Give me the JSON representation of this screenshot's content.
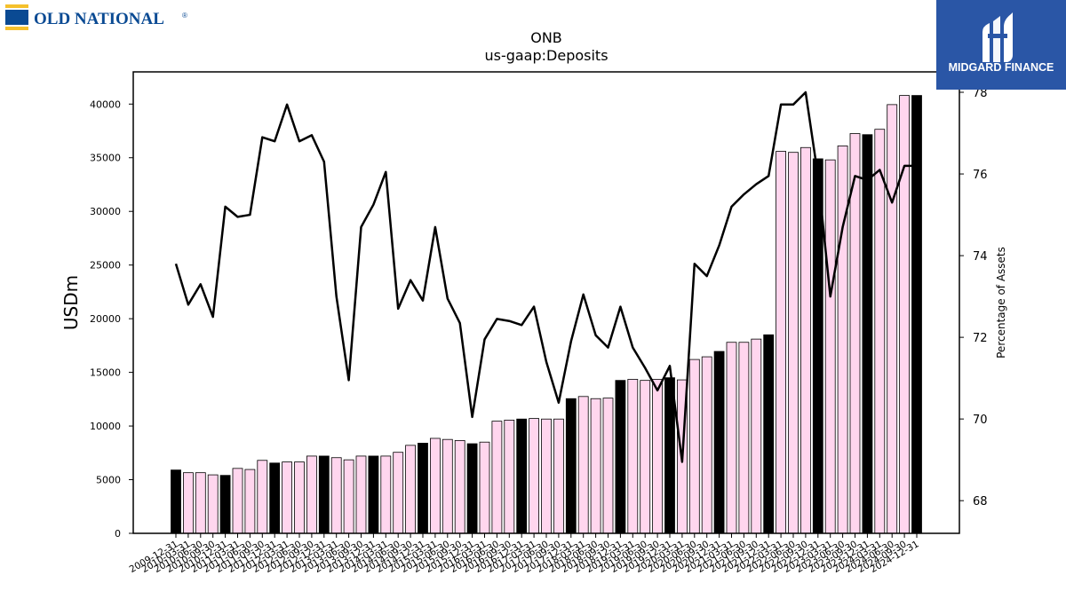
{
  "brand_left": {
    "name": "OLD NATIONAL",
    "mark": "®",
    "colors": {
      "text": "#0a4a93",
      "stripe_yellow": "#f5c02c",
      "stripe_blue": "#0a4a93"
    }
  },
  "brand_right": {
    "name": "MIDGARD FINANCE",
    "colors": {
      "background": "#2a56a6",
      "text": "#ffffff"
    }
  },
  "chart_data": {
    "type": "bar",
    "title": "ONB",
    "subtitle": "us-gaap:Deposits",
    "ylabel": "USDm",
    "ylabel_right": "Percentage of Assets",
    "ylim": [
      0,
      43000
    ],
    "ylim_right": [
      67.2,
      78.5
    ],
    "yticks": [
      0,
      5000,
      10000,
      15000,
      20000,
      25000,
      30000,
      35000,
      40000
    ],
    "yticks_right": [
      68,
      70,
      72,
      74,
      76,
      78
    ],
    "grid": false,
    "colors": {
      "annual": "#000000",
      "quarterly": "#ffd6ee",
      "line": "#000000"
    },
    "categories": [
      "2009-12-31",
      "2010-03-31",
      "2010-06-30",
      "2010-09-30",
      "2010-12-31",
      "2011-03-31",
      "2011-06-30",
      "2011-09-30",
      "2011-12-31",
      "2012-03-31",
      "2012-06-30",
      "2012-09-30",
      "2012-12-31",
      "2013-03-31",
      "2013-06-30",
      "2013-09-30",
      "2013-12-31",
      "2014-03-31",
      "2014-06-30",
      "2014-09-30",
      "2014-12-31",
      "2015-03-31",
      "2015-06-30",
      "2015-09-30",
      "2015-12-31",
      "2016-03-31",
      "2016-06-30",
      "2016-09-30",
      "2016-12-31",
      "2017-03-31",
      "2017-06-30",
      "2017-09-30",
      "2017-12-31",
      "2018-03-31",
      "2018-06-30",
      "2018-09-30",
      "2018-12-31",
      "2019-03-31",
      "2019-06-30",
      "2019-09-30",
      "2019-12-31",
      "2020-03-31",
      "2020-06-30",
      "2020-09-30",
      "2020-12-31",
      "2021-03-31",
      "2021-06-30",
      "2021-09-30",
      "2021-12-31",
      "2022-03-31",
      "2022-06-30",
      "2022-09-30",
      "2022-12-31",
      "2023-03-31",
      "2023-06-30",
      "2023-09-30",
      "2023-12-31",
      "2024-03-31",
      "2024-06-30",
      "2024-09-30",
      "2024-12-31"
    ],
    "series": [
      {
        "kind": "bar",
        "values": [
          5900,
          5650,
          5650,
          5450,
          5400,
          6050,
          5950,
          6800,
          6550,
          6650,
          6650,
          7200,
          7200,
          7050,
          6850,
          7200,
          7200,
          7200,
          7550,
          8200,
          8400,
          8850,
          8750,
          8650,
          8350,
          8500,
          10450,
          10550,
          10650,
          10700,
          10650,
          10650,
          12550,
          12750,
          12550,
          12600,
          14250,
          14350,
          14250,
          14350,
          14500,
          14300,
          16200,
          16450,
          16950,
          17800,
          17800,
          18100,
          18500,
          35600,
          35500,
          35950,
          34900,
          34800,
          36100,
          37250,
          37150,
          37650,
          39950,
          40800,
          40800
        ]
      },
      {
        "kind": "line",
        "axis": "right",
        "values": [
          73.8,
          72.8,
          73.3,
          72.5,
          75.2,
          74.95,
          75.0,
          76.9,
          76.8,
          77.7,
          76.8,
          76.95,
          76.3,
          73.0,
          70.95,
          74.7,
          75.25,
          76.05,
          72.7,
          73.4,
          72.9,
          74.7,
          72.95,
          72.35,
          70.05,
          71.95,
          72.45,
          72.4,
          72.3,
          72.75,
          71.4,
          70.4,
          71.9,
          73.05,
          72.05,
          71.75,
          72.75,
          71.75,
          71.25,
          70.7,
          71.3,
          68.95,
          73.8,
          73.5,
          74.25,
          75.2,
          75.5,
          75.75,
          75.95,
          77.7,
          77.7,
          78.0,
          75.95,
          73.0,
          74.7,
          75.95,
          75.85,
          76.1,
          75.3,
          76.2,
          76.2
        ]
      }
    ]
  }
}
